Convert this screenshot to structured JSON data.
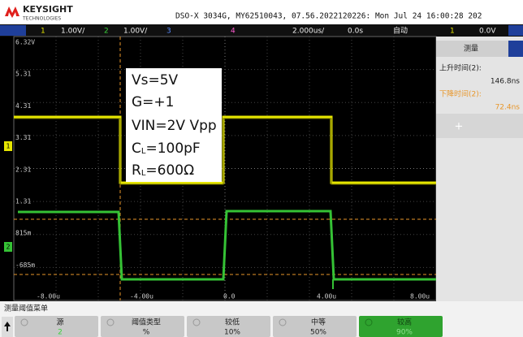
{
  "header": {
    "brand": "KEYSIGHT",
    "brand_sub": "TECHNOLOGIES",
    "info": "DSO-X 3034G, MY62510043, 07.56.2022120226: Mon Jul 24 16:00:28 202"
  },
  "channel_bar": {
    "ch1": "1",
    "ch1_scale": "1.00V/",
    "ch2": "2",
    "ch2_scale": "1.00V/",
    "ch3": "3",
    "ch4": "4",
    "timebase": "2.000us/",
    "delay": "0.0s",
    "mode": "自动",
    "trig_source": "1",
    "trig_level": "0.0V"
  },
  "y_labels": [
    "6.32V",
    "5.31",
    "4.31",
    "3.31",
    "2.31",
    "1.31",
    "815m",
    "-685m"
  ],
  "x_labels": [
    "-8.00u",
    "-4.00u",
    "0.0",
    "4.00u",
    "8.00u"
  ],
  "markers": [
    "1",
    "2"
  ],
  "annotation": {
    "vs": "Vs=5V",
    "g": "G=+1",
    "vin": "VIN=2V Vpp",
    "cl": {
      "main": "C",
      "sub": "L",
      "rest": "=100pF"
    },
    "rl": {
      "main": "R",
      "sub": "L",
      "rest": "=600Ω"
    }
  },
  "measure_panel": {
    "title": "测量",
    "items": [
      {
        "label": "上升时间(2):",
        "value": "146.8ns"
      },
      {
        "label": "下降时间(2):",
        "value": "72.4ns"
      }
    ],
    "add": "+"
  },
  "menu": {
    "title": "测量阈值菜单",
    "softkeys": [
      {
        "label": "源",
        "value": "2"
      },
      {
        "label": "阈值类型",
        "value": "%"
      },
      {
        "label": "较低",
        "value": "10%"
      },
      {
        "label": "中等",
        "value": "50%"
      },
      {
        "label": "较高",
        "value": "90%"
      }
    ]
  }
}
